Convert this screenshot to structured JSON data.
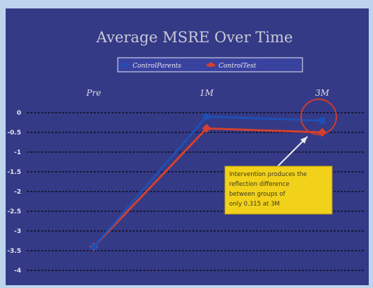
{
  "chart_data": {
    "type": "line",
    "title": "Average MSRE Over Time",
    "categories": [
      "Pre",
      "1M",
      "3M"
    ],
    "series": [
      {
        "name": "ControlParents",
        "values": [
          -3.4,
          -0.1,
          -0.2
        ]
      },
      {
        "name": "ControlTest",
        "values": [
          -3.4,
          -0.4,
          -0.5
        ]
      }
    ],
    "ylim": [
      -4,
      0
    ],
    "yticks": [
      "0",
      "-0.5",
      "-1",
      "-1.5",
      "-2",
      "-2.5",
      "-3",
      "-3.5",
      "-4"
    ],
    "legend_position": "top",
    "grid": true,
    "annotation": {
      "lines": [
        "Intervention produces the",
        "reflection difference",
        "between groups of",
        "only 0.315 at 3M"
      ]
    }
  },
  "colors": {
    "background": "#343a86",
    "series_1": "#1f4fb4",
    "series_2": "#d6402e",
    "highlight_circle": "#cc3b2e",
    "callout_fill": "#f2d11a",
    "gridline": "#101020"
  }
}
